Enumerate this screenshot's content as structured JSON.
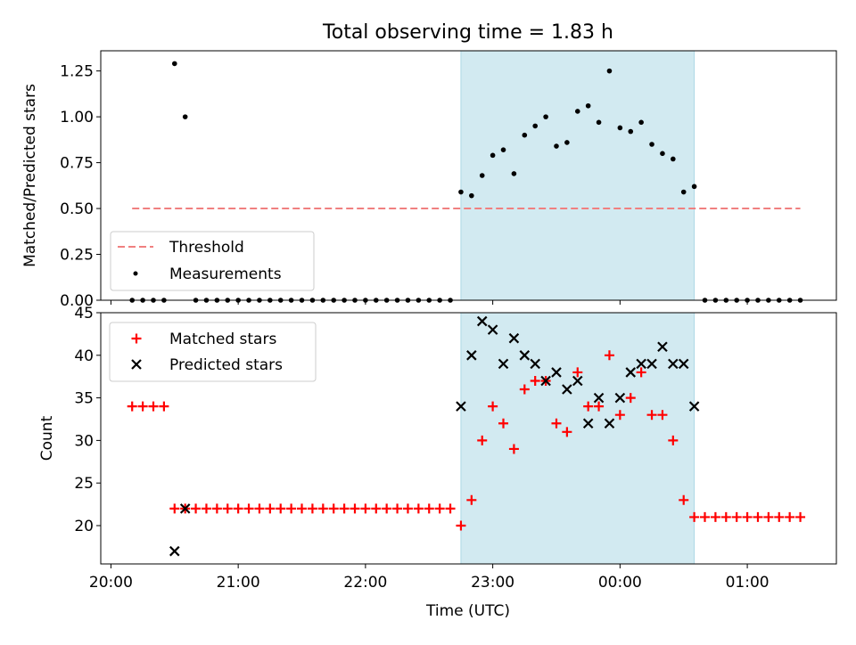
{
  "figure": {
    "title": "Total observing time = 1.83 h",
    "xlabel": "Time (UTC)",
    "shade_color": "#add8e6",
    "x_ticks": [
      "20:00",
      "21:00",
      "22:00",
      "23:00",
      "00:00",
      "01:00"
    ]
  },
  "chart_data": [
    {
      "type": "scatter",
      "panel": "top",
      "ylabel": "Matched/Predicted stars",
      "x_unit": "hours since 20:00 UTC",
      "xlim": [
        -0.08,
        5.7
      ],
      "ylim": [
        0,
        1.36
      ],
      "y_ticks": [
        "0.00",
        "0.25",
        "0.50",
        "0.75",
        "1.00",
        "1.25"
      ],
      "shaded_interval": [
        "22:45",
        "00:35"
      ],
      "legend_position": "lower-left",
      "series": [
        {
          "name": "Threshold",
          "kind": "dashed-line",
          "color": "#f08080",
          "x": [
            "20:10",
            "01:25"
          ],
          "y": [
            0.5,
            0.5
          ]
        },
        {
          "name": "Measurements",
          "kind": "points",
          "color": "#000000",
          "x": [
            "20:10",
            "20:15",
            "20:20",
            "20:25",
            "20:30",
            "20:35",
            "20:40",
            "20:45",
            "20:50",
            "20:55",
            "21:00",
            "21:05",
            "21:10",
            "21:15",
            "21:20",
            "21:25",
            "21:30",
            "21:35",
            "21:40",
            "21:45",
            "21:50",
            "21:55",
            "22:00",
            "22:05",
            "22:10",
            "22:15",
            "22:20",
            "22:25",
            "22:30",
            "22:35",
            "22:40",
            "22:45",
            "22:50",
            "22:55",
            "23:00",
            "23:05",
            "23:10",
            "23:15",
            "23:20",
            "23:25",
            "23:30",
            "23:35",
            "23:40",
            "23:45",
            "23:50",
            "23:55",
            "00:00",
            "00:05",
            "00:10",
            "00:15",
            "00:20",
            "00:25",
            "00:30",
            "00:35",
            "00:40",
            "00:45",
            "00:50",
            "00:55",
            "01:00",
            "01:05",
            "01:10",
            "01:15",
            "01:20",
            "01:25"
          ],
          "y": [
            0,
            0,
            0,
            0,
            1.29,
            1.0,
            0,
            0,
            0,
            0,
            0,
            0,
            0,
            0,
            0,
            0,
            0,
            0,
            0,
            0,
            0,
            0,
            0,
            0,
            0,
            0,
            0,
            0,
            0,
            0,
            0,
            0.59,
            0.57,
            0.68,
            0.79,
            0.82,
            0.69,
            0.9,
            0.95,
            1.0,
            0.84,
            0.86,
            1.03,
            1.06,
            0.97,
            1.25,
            0.94,
            0.92,
            0.97,
            0.85,
            0.8,
            0.77,
            0.59,
            0.62,
            0,
            0,
            0,
            0,
            0,
            0,
            0,
            0,
            0,
            0
          ]
        }
      ]
    },
    {
      "type": "scatter",
      "panel": "bottom",
      "ylabel": "Count",
      "x_unit": "hours since 20:00 UTC",
      "xlim": [
        -0.08,
        5.7
      ],
      "ylim": [
        15.5,
        45
      ],
      "y_ticks": [
        "20",
        "25",
        "30",
        "35",
        "40",
        "45"
      ],
      "shaded_interval": [
        "22:45",
        "00:35"
      ],
      "legend_position": "upper-left",
      "series": [
        {
          "name": "Matched stars",
          "kind": "plus",
          "color": "#ff0000",
          "x": [
            "20:10",
            "20:15",
            "20:20",
            "20:25",
            "20:30",
            "20:35",
            "20:40",
            "20:45",
            "20:50",
            "20:55",
            "21:00",
            "21:05",
            "21:10",
            "21:15",
            "21:20",
            "21:25",
            "21:30",
            "21:35",
            "21:40",
            "21:45",
            "21:50",
            "21:55",
            "22:00",
            "22:05",
            "22:10",
            "22:15",
            "22:20",
            "22:25",
            "22:30",
            "22:35",
            "22:40",
            "22:45",
            "22:50",
            "22:55",
            "23:00",
            "23:05",
            "23:10",
            "23:15",
            "23:20",
            "23:25",
            "23:30",
            "23:35",
            "23:40",
            "23:45",
            "23:50",
            "23:55",
            "00:00",
            "00:05",
            "00:10",
            "00:15",
            "00:20",
            "00:25",
            "00:30",
            "00:35",
            "00:40",
            "00:45",
            "00:50",
            "00:55",
            "01:00",
            "01:05",
            "01:10",
            "01:15",
            "01:20",
            "01:25"
          ],
          "y": [
            34,
            34,
            34,
            34,
            22,
            22,
            22,
            22,
            22,
            22,
            22,
            22,
            22,
            22,
            22,
            22,
            22,
            22,
            22,
            22,
            22,
            22,
            22,
            22,
            22,
            22,
            22,
            22,
            22,
            22,
            22,
            20,
            23,
            30,
            34,
            32,
            29,
            36,
            37,
            37,
            32,
            31,
            38,
            34,
            34,
            40,
            33,
            35,
            38,
            33,
            33,
            30,
            23,
            21,
            21,
            21,
            21,
            21,
            21,
            21,
            21,
            21,
            21,
            21
          ]
        },
        {
          "name": "Predicted stars",
          "kind": "x",
          "color": "#000000",
          "x": [
            "20:30",
            "20:35",
            "22:45",
            "22:50",
            "22:55",
            "23:00",
            "23:05",
            "23:10",
            "23:15",
            "23:20",
            "23:25",
            "23:30",
            "23:35",
            "23:40",
            "23:45",
            "23:50",
            "23:55",
            "00:00",
            "00:05",
            "00:10",
            "00:15",
            "00:20",
            "00:25",
            "00:30",
            "00:35"
          ],
          "y": [
            17,
            22,
            34,
            40,
            44,
            43,
            39,
            42,
            40,
            39,
            37,
            38,
            36,
            37,
            32,
            35,
            32,
            35,
            38,
            39,
            39,
            41,
            39,
            39,
            34
          ]
        }
      ]
    }
  ]
}
